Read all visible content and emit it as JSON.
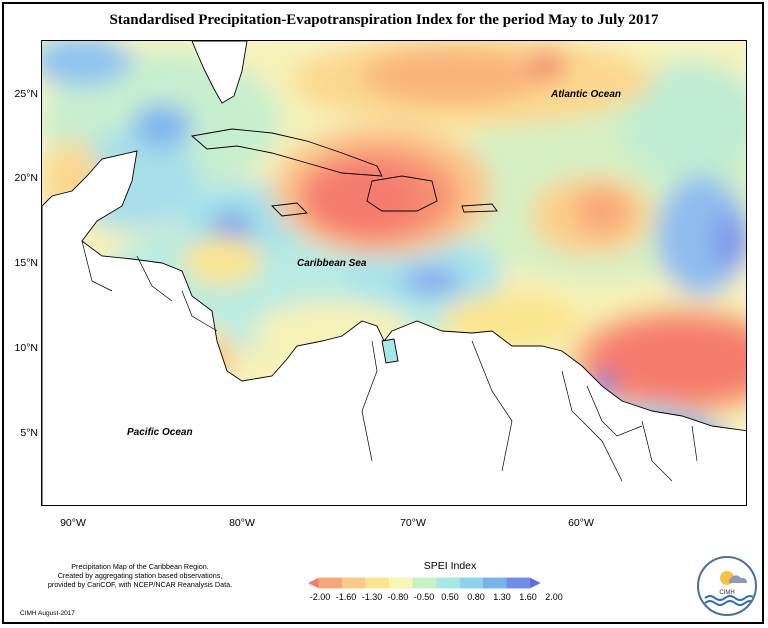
{
  "title": "Standardised Precipitation-Evapotranspiration Index for the period May to July 2017",
  "map": {
    "lat_labels": [
      "25°N",
      "20°N",
      "15°N",
      "10°N",
      "5°N"
    ],
    "lon_labels": [
      "90°W",
      "80°W",
      "70°W",
      "60°W"
    ],
    "labels": {
      "atlantic": "Atlantic Ocean",
      "caribbean": "Caribbean Sea",
      "pacific": "Pacific Ocean"
    }
  },
  "legend": {
    "title": "SPEI Index",
    "ticks": [
      "-2.00",
      "-1.60",
      "-1.30",
      "-0.80",
      "-0.50",
      "0.50",
      "0.80",
      "1.30",
      "1.60",
      "2.00"
    ],
    "colors": [
      "#f47b6e",
      "#f9a77a",
      "#fbc98a",
      "#fbe58e",
      "#f8f6b0",
      "#c6f2c4",
      "#a6e8e6",
      "#8fd2ef",
      "#79b3ee",
      "#6f8ee8",
      "#5b6fe0"
    ]
  },
  "footer": {
    "line1": "Precipitation Map of the Caribbean Region.",
    "line2": "Created by aggregating station based observations,",
    "line3": "provided by CariCOF, with NCEP/NCAR Reanalysis Data.",
    "credit": "CIMH August-2017"
  },
  "logo": {
    "text": "CIMH"
  }
}
